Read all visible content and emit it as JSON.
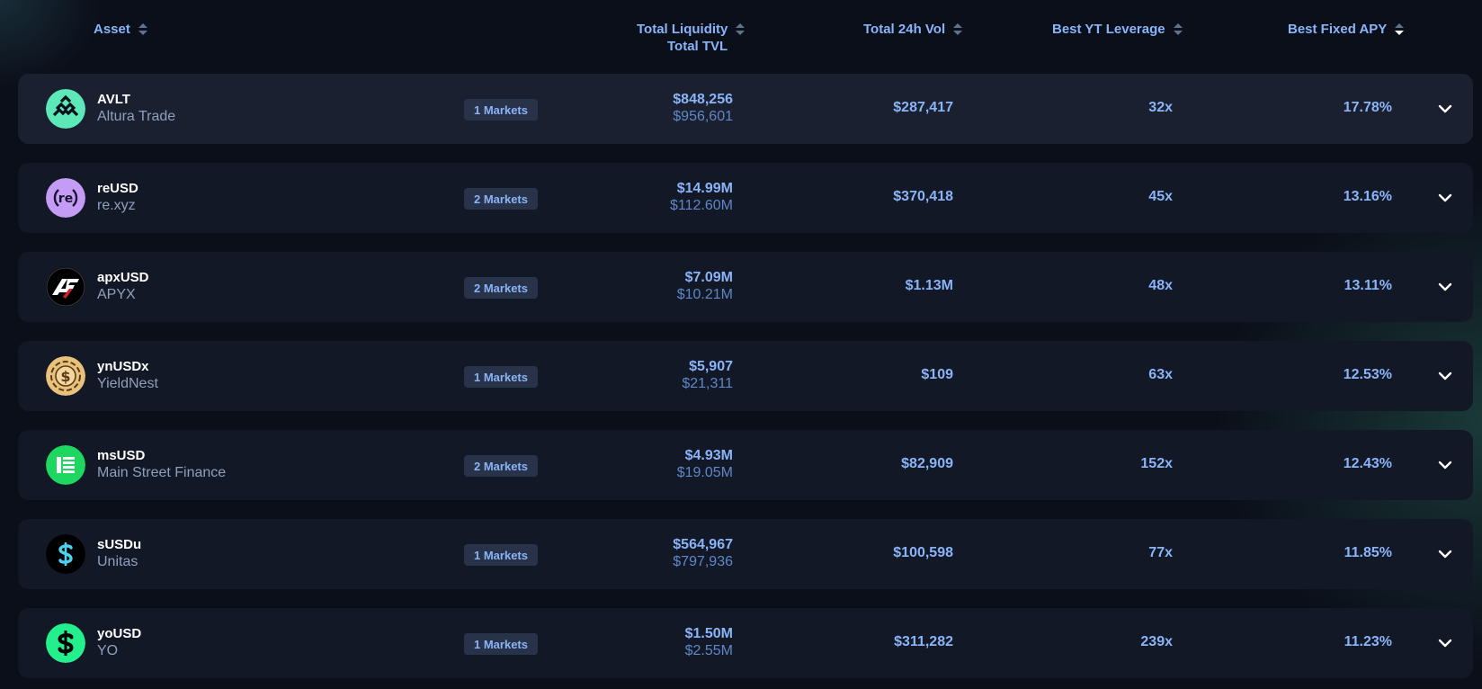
{
  "header": {
    "asset": "Asset",
    "liquidity": "Total Liquidity",
    "tvl": "Total TVL",
    "volume": "Total 24h Vol",
    "leverage": "Best YT Leverage",
    "apy": "Best Fixed APY",
    "active_sort": "Best Fixed APY, descending"
  },
  "rows": [
    {
      "symbol": "AVLT",
      "name": "Altura Trade",
      "markets": "1 Markets",
      "liquidity": "$848,256",
      "tvl": "$956,601",
      "volume": "$287,417",
      "leverage": "32x",
      "apy": "17.78%",
      "logo_icon": "altura-logo-icon",
      "logo_color": "#5ce8b7"
    },
    {
      "symbol": "reUSD",
      "name": "re.xyz",
      "markets": "2 Markets",
      "liquidity": "$14.99M",
      "tvl": "$112.60M",
      "volume": "$370,418",
      "leverage": "45x",
      "apy": "13.16%",
      "logo_icon": "re-logo-icon",
      "logo_color": "#c49cf5"
    },
    {
      "symbol": "apxUSD",
      "name": "APYX",
      "markets": "2 Markets",
      "liquidity": "$7.09M",
      "tvl": "$10.21M",
      "volume": "$1.13M",
      "leverage": "48x",
      "apy": "13.11%",
      "logo_icon": "apyx-logo-icon",
      "logo_color": "#000000"
    },
    {
      "symbol": "ynUSDx",
      "name": "YieldNest",
      "markets": "1 Markets",
      "liquidity": "$5,907",
      "tvl": "$21,311",
      "volume": "$109",
      "leverage": "63x",
      "apy": "12.53%",
      "logo_icon": "yieldnest-logo-icon",
      "logo_color": "#e8c27a"
    },
    {
      "symbol": "msUSD",
      "name": "Main Street Finance",
      "markets": "2 Markets",
      "liquidity": "$4.93M",
      "tvl": "$19.05M",
      "volume": "$82,909",
      "leverage": "152x",
      "apy": "12.43%",
      "logo_icon": "main-street-logo-icon",
      "logo_color": "#1ed760"
    },
    {
      "symbol": "sUSDu",
      "name": "Unitas",
      "markets": "1 Markets",
      "liquidity": "$564,967",
      "tvl": "$797,936",
      "volume": "$100,598",
      "leverage": "77x",
      "apy": "11.85%",
      "logo_icon": "unitas-logo-icon",
      "logo_color": "#000000"
    },
    {
      "symbol": "yoUSD",
      "name": "YO",
      "markets": "1 Markets",
      "liquidity": "$1.50M",
      "tvl": "$2.55M",
      "volume": "$311,282",
      "leverage": "239x",
      "apy": "11.23%",
      "logo_icon": "yo-logo-icon",
      "logo_color": "#23f08c"
    }
  ],
  "colors": {
    "accent": "#8ab4f8",
    "background": "#0b0f1a",
    "row_background": "#131826",
    "badge_background": "#283249"
  }
}
